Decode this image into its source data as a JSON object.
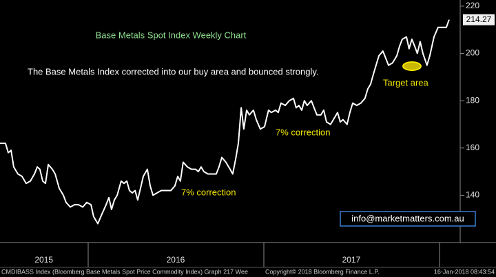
{
  "chart_data": {
    "type": "line",
    "title": "Base Metals Spot Index Weekly Chart",
    "annotations": [
      "The Base Metals Index corrected into our buy area and bounced strongly.",
      "7% correction",
      "7% correction",
      "Target area"
    ],
    "email": "info@marketmatters.com.au",
    "footer": {
      "left": "CMDIBASS Index (Bloomberg Base Metals Spot Price Commodity Index) Graph 217  Wee",
      "center": "Copyright© 2018 Bloomberg Finance L.P.",
      "right": "16-Jan-2018 08:43:54"
    },
    "color": "#ffffff",
    "xlim": [
      2015.5,
      2018.12
    ],
    "xticks": [
      {
        "value": 2015.75,
        "label": "2015"
      },
      {
        "value": 2016.5,
        "label": "2016"
      },
      {
        "value": 2017.5,
        "label": "2017"
      }
    ],
    "ylim": [
      120,
      222.6
    ],
    "yticks": [
      140,
      160,
      180,
      200,
      220
    ],
    "x": [
      2015.5,
      2015.531,
      2015.547,
      2015.563,
      2015.578,
      2015.602,
      2015.625,
      2015.649,
      2015.673,
      2015.696,
      2015.712,
      2015.727,
      2015.743,
      2015.759,
      2015.775,
      2015.798,
      2015.814,
      2015.837,
      2015.861,
      2015.876,
      2015.9,
      2015.924,
      2015.947,
      2015.971,
      2015.994,
      2016.018,
      2016.033,
      2016.057,
      2016.08,
      2016.104,
      2016.12,
      2016.135,
      2016.151,
      2016.167,
      2016.19,
      2016.206,
      2016.222,
      2016.237,
      2016.253,
      2016.269,
      2016.284,
      2016.3,
      2016.316,
      2016.339,
      2016.355,
      2016.371,
      2016.394,
      2016.418,
      2016.441,
      2016.473,
      2016.496,
      2016.512,
      2016.527,
      2016.543,
      2016.567,
      2016.59,
      2016.614,
      2016.629,
      2016.645,
      2016.661,
      2016.684,
      2016.708,
      2016.731,
      2016.747,
      2016.763,
      2016.786,
      2016.81,
      2016.825,
      2016.841,
      2016.857,
      2016.873,
      2016.888,
      2016.904,
      2016.92,
      2016.943,
      2016.959,
      2016.982,
      2017.006,
      2017.029,
      2017.045,
      2017.069,
      2017.084,
      2017.1,
      2017.124,
      2017.147,
      2017.171,
      2017.186,
      2017.202,
      2017.218,
      2017.233,
      2017.249,
      2017.273,
      2017.288,
      2017.304,
      2017.327,
      2017.343,
      2017.359,
      2017.382,
      2017.406,
      2017.422,
      2017.437,
      2017.453,
      2017.476,
      2017.492,
      2017.508,
      2017.531,
      2017.555,
      2017.578,
      2017.594,
      2017.61,
      2017.625,
      2017.641,
      2017.657,
      2017.68,
      2017.696,
      2017.712,
      2017.735,
      2017.759,
      2017.775,
      2017.79,
      2017.814,
      2017.829,
      2017.845,
      2017.861,
      2017.876,
      2017.892,
      2017.908,
      2017.931,
      2017.947,
      2017.971,
      2017.994,
      2018.025,
      2018.041,
      2018.057
    ],
    "values": [
      162,
      162,
      158,
      159,
      152,
      149,
      148,
      145,
      146,
      149,
      152,
      151,
      146,
      145,
      153,
      151,
      149,
      143,
      140,
      137,
      135,
      136,
      136,
      135,
      137,
      136,
      131,
      128,
      132,
      136,
      139,
      134,
      138,
      140,
      146,
      145,
      146,
      142,
      141,
      142,
      138,
      143,
      148,
      151,
      144,
      140,
      141,
      142,
      142,
      142,
      144,
      148,
      146,
      154,
      152,
      151,
      151,
      150,
      152,
      150,
      149,
      149,
      149,
      152,
      156,
      154,
      151,
      149,
      155,
      162,
      177,
      168,
      176,
      174,
      176,
      172,
      168,
      169,
      176,
      175,
      176,
      175,
      179,
      178,
      180,
      181,
      177,
      178,
      176,
      180,
      178,
      180,
      177,
      174,
      174,
      176,
      171,
      170,
      173,
      175,
      171,
      172,
      170,
      175,
      179,
      178,
      179,
      181,
      185,
      187,
      191,
      195,
      199,
      201,
      198,
      195,
      196,
      199,
      203,
      206,
      207,
      202,
      206,
      203,
      200,
      205,
      200,
      195,
      199,
      207,
      211,
      211,
      211,
      214.27
    ]
  }
}
